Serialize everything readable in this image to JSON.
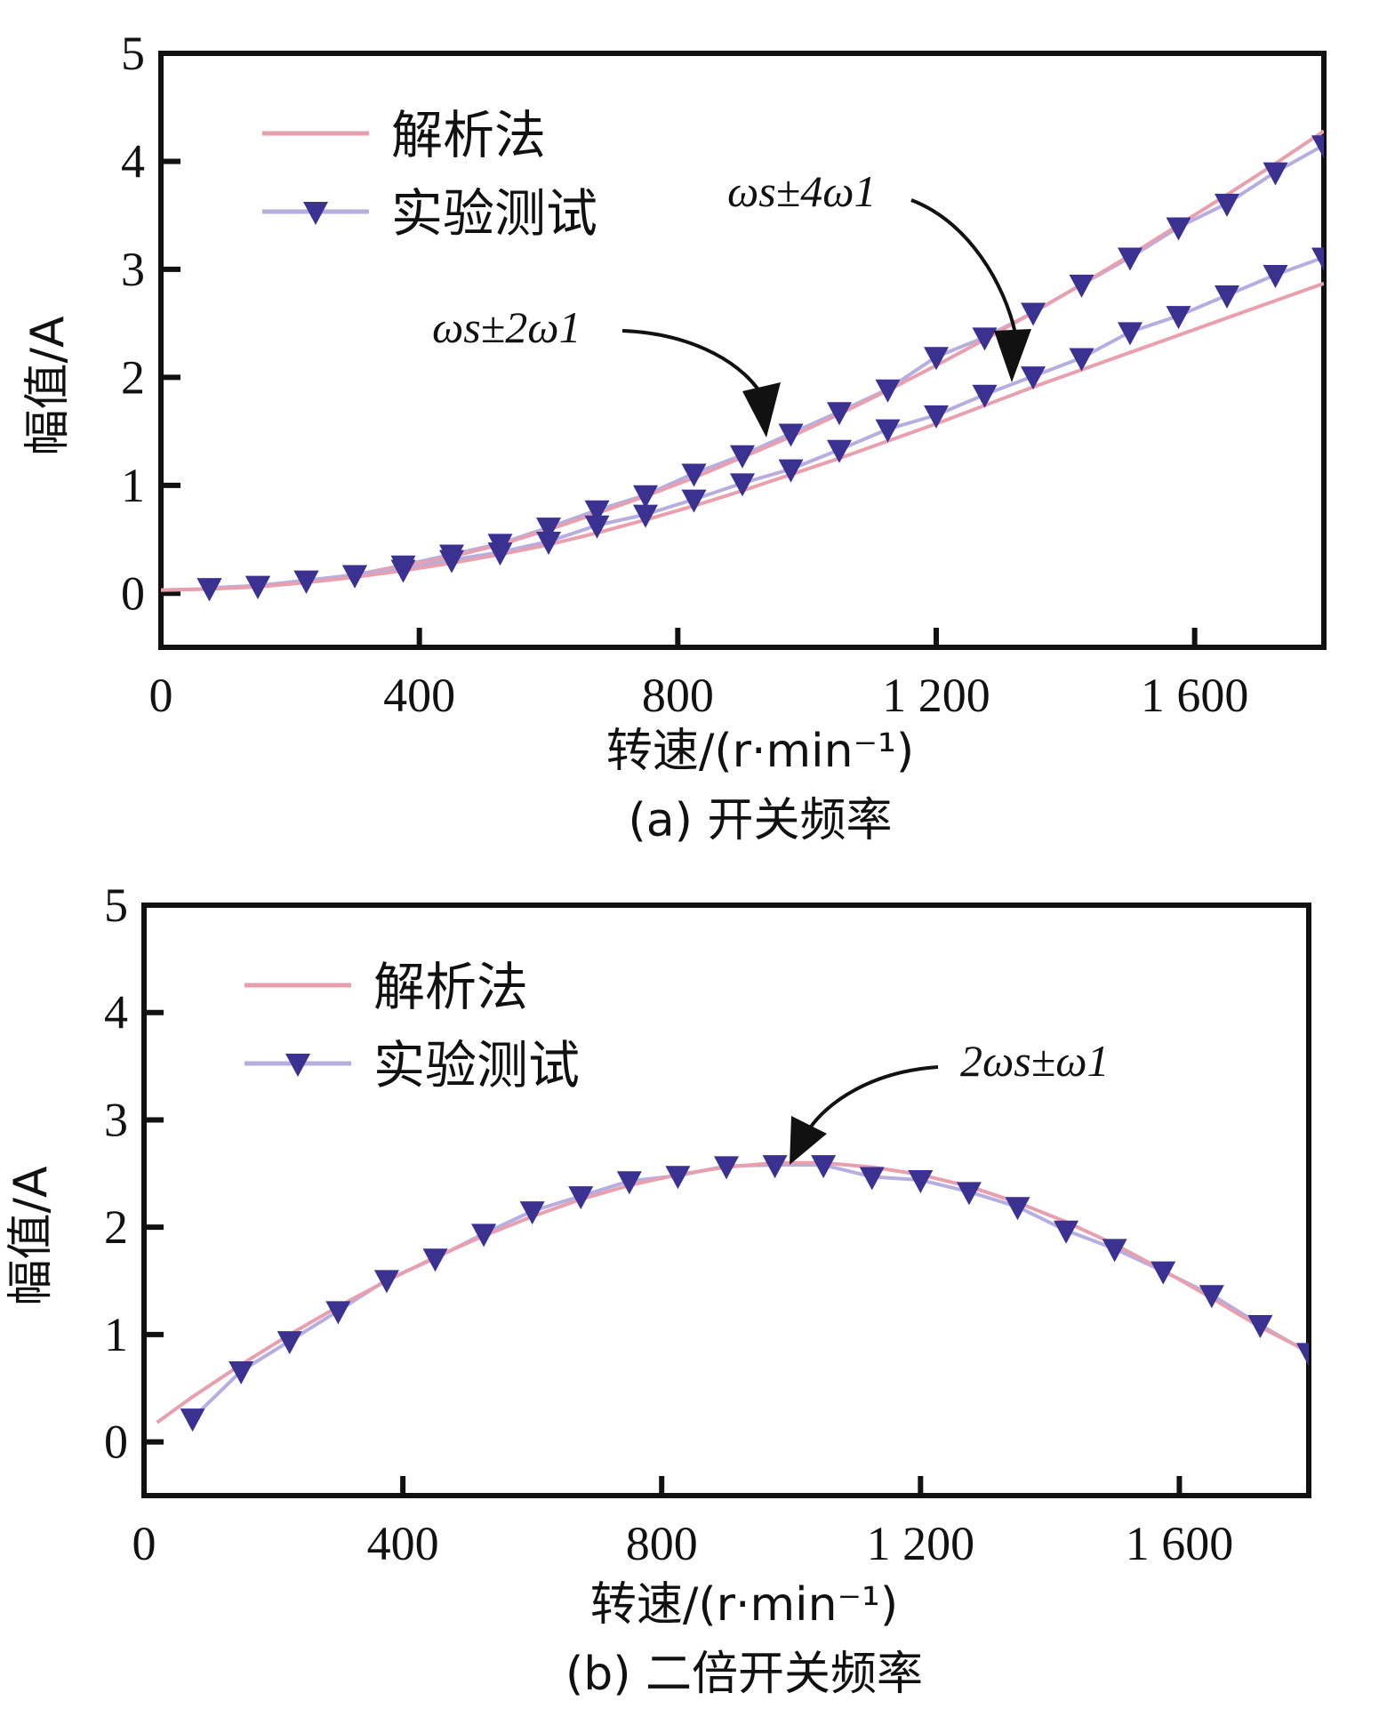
{
  "chart_data": [
    {
      "type": "line",
      "title": "",
      "caption": "(a) 开关频率",
      "xlabel": "转速/(r·min⁻¹)",
      "ylabel": "幅值/A",
      "xlim": [
        0,
        1800
      ],
      "ylim": [
        -0.5,
        5
      ],
      "xticks": [
        0,
        400,
        800,
        1200,
        1600
      ],
      "xtick_labels": [
        "0",
        "400",
        "800",
        "1 200",
        "1 600"
      ],
      "yticks": [
        0,
        1,
        2,
        3,
        4,
        5
      ],
      "ytick_labels": [
        "0",
        "1",
        "2",
        "3",
        "4",
        "5"
      ],
      "grid": false,
      "legend": {
        "placement": "top-left",
        "entries": [
          "解析法",
          "实验测试"
        ]
      },
      "annotations": [
        {
          "text": "ωs±2ω1",
          "points_to": "upper curve near 950 r/min"
        },
        {
          "text": "ωs±4ω1",
          "points_to": "lower curve near 1320 r/min"
        }
      ],
      "x": [
        75,
        150,
        225,
        300,
        375,
        450,
        525,
        600,
        675,
        750,
        825,
        900,
        975,
        1050,
        1125,
        1200,
        1275,
        1350,
        1425,
        1500,
        1575,
        1650,
        1725,
        1800
      ],
      "series": [
        {
          "name": "实验测试 ωs±2ω1",
          "marker": "triangle-down",
          "values": [
            0.05,
            0.07,
            0.12,
            0.17,
            0.26,
            0.36,
            0.46,
            0.61,
            0.77,
            0.91,
            1.11,
            1.28,
            1.48,
            1.68,
            1.89,
            2.19,
            2.37,
            2.6,
            2.86,
            3.11,
            3.39,
            3.61,
            3.9,
            4.15
          ]
        },
        {
          "name": "解析法 ωs±2ω1",
          "marker": "none",
          "values": [
            0.04,
            0.07,
            0.11,
            0.17,
            0.25,
            0.34,
            0.45,
            0.59,
            0.74,
            0.9,
            1.07,
            1.26,
            1.45,
            1.66,
            1.88,
            2.11,
            2.35,
            2.6,
            2.86,
            3.13,
            3.41,
            3.69,
            3.98,
            4.28
          ]
        },
        {
          "name": "实验测试 ωs±4ω1",
          "marker": "triangle-down",
          "values": [
            0.05,
            0.07,
            0.12,
            0.17,
            0.22,
            0.31,
            0.38,
            0.48,
            0.63,
            0.73,
            0.87,
            1.02,
            1.15,
            1.33,
            1.52,
            1.65,
            1.84,
            2.01,
            2.18,
            2.42,
            2.57,
            2.76,
            2.95,
            3.11
          ]
        },
        {
          "name": "解析法 ωs±4ω1",
          "marker": "none",
          "values": [
            0.04,
            0.06,
            0.1,
            0.15,
            0.21,
            0.28,
            0.36,
            0.45,
            0.56,
            0.68,
            0.81,
            0.95,
            1.1,
            1.25,
            1.41,
            1.57,
            1.74,
            1.91,
            2.07,
            2.23,
            2.39,
            2.55,
            2.71,
            2.87
          ]
        }
      ]
    },
    {
      "type": "line",
      "title": "",
      "caption": "(b) 二倍开关频率",
      "xlabel": "转速/(r·min⁻¹)",
      "ylabel": "幅值/A",
      "xlim": [
        0,
        1800
      ],
      "ylim": [
        -0.5,
        5
      ],
      "xticks": [
        0,
        400,
        800,
        1200,
        1600
      ],
      "xtick_labels": [
        "0",
        "400",
        "800",
        "1 200",
        "1 600"
      ],
      "yticks": [
        0,
        1,
        2,
        3,
        4,
        5
      ],
      "ytick_labels": [
        "0",
        "1",
        "2",
        "3",
        "4",
        "5"
      ],
      "grid": false,
      "legend": {
        "placement": "top-left",
        "entries": [
          "解析法",
          "实验测试"
        ]
      },
      "annotations": [
        {
          "text": "2ωs±ω1",
          "points_to": "curve peak near 1000 r/min"
        }
      ],
      "x": [
        75,
        150,
        225,
        300,
        375,
        450,
        525,
        600,
        675,
        750,
        825,
        900,
        975,
        1050,
        1125,
        1200,
        1275,
        1350,
        1425,
        1500,
        1575,
        1650,
        1725,
        1800
      ],
      "series": [
        {
          "name": "实验测试",
          "marker": "triangle-down",
          "values": [
            0.22,
            0.66,
            0.94,
            1.22,
            1.51,
            1.71,
            1.94,
            2.15,
            2.29,
            2.43,
            2.48,
            2.57,
            2.58,
            2.58,
            2.47,
            2.44,
            2.33,
            2.19,
            1.97,
            1.8,
            1.59,
            1.37,
            1.09,
            0.83
          ]
        },
        {
          "name": "解析法",
          "marker": "none",
          "values": [
            0.42,
            0.72,
            1.0,
            1.26,
            1.5,
            1.72,
            1.92,
            2.1,
            2.26,
            2.39,
            2.49,
            2.56,
            2.6,
            2.6,
            2.56,
            2.49,
            2.38,
            2.23,
            2.05,
            1.84,
            1.6,
            1.34,
            1.07,
            0.84
          ]
        }
      ],
      "analytic_start": {
        "x": 20,
        "y": 0.18
      }
    }
  ],
  "legend_labels": {
    "analytic": "解析法",
    "experiment": "实验测试"
  },
  "colors": {
    "analytic": "#e8a0ae",
    "experiment_line": "#b7aee0",
    "marker": "#3a3191",
    "axis": "#111111",
    "arrow": "#111111"
  }
}
